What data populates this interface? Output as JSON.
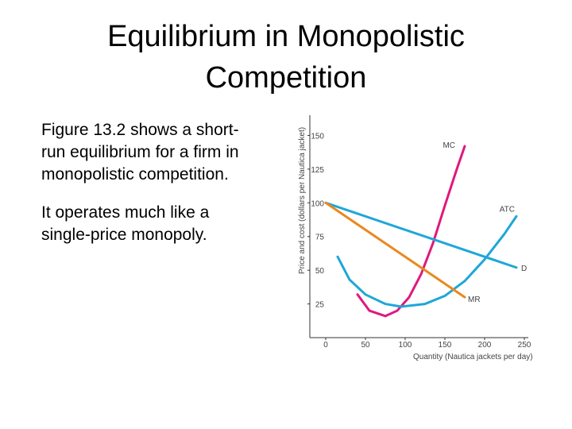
{
  "header": {
    "title": [
      "Equilibrium in Monopolistic",
      "Competition"
    ]
  },
  "body": {
    "paragraphs": [
      [
        "Figure 13.2 shows a short-",
        "run equilibrium for a firm in",
        "monopolistic competition."
      ],
      [
        "It operates much like a",
        "single-price monopoly."
      ]
    ]
  },
  "chart_data": {
    "type": "line",
    "x_label": "Quantity (Nautica jackets per day)",
    "y_label": "Price and cost (dollars per Nautica jacket)",
    "xlim": [
      -20,
      255
    ],
    "xticks": [
      0,
      50,
      100,
      150,
      200,
      250
    ],
    "ylim": [
      0,
      165
    ],
    "yticks": [
      25,
      50,
      75,
      100,
      125,
      150
    ],
    "series": [
      {
        "name": "MC",
        "color": "#e0197d",
        "x": [
          40,
          55,
          75,
          90,
          105,
          120,
          135,
          150,
          165,
          175
        ],
        "values": [
          32,
          20,
          16,
          20,
          30,
          47,
          70,
          98,
          125,
          142
        ]
      },
      {
        "name": "ATC",
        "color": "#1ea7d8",
        "x": [
          15,
          30,
          50,
          75,
          95,
          125,
          150,
          175,
          200,
          225,
          240
        ],
        "values": [
          60,
          43,
          32,
          25,
          23,
          25,
          31,
          42,
          58,
          77,
          90
        ]
      },
      {
        "name": "D",
        "color": "#1ea7d8",
        "x": [
          0,
          240
        ],
        "values": [
          100,
          52
        ]
      },
      {
        "name": "MR",
        "color": "#e8891f",
        "x": [
          0,
          175
        ],
        "values": [
          100,
          30
        ]
      }
    ]
  }
}
